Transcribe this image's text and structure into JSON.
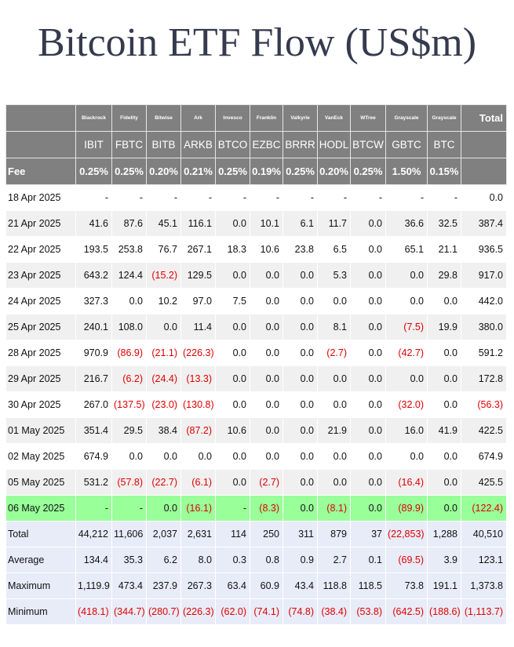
{
  "title": "Bitcoin ETF Flow (US$m)",
  "table": {
    "header": {
      "issuers": [
        "Blackrock",
        "Fidelity",
        "Bitwise",
        "Ark",
        "Invesco",
        "Franklin",
        "Valkyrie",
        "VanEck",
        "WTree",
        "Grayscale",
        "Grayscale"
      ],
      "total_label": "Total",
      "tickers": [
        "IBIT",
        "FBTC",
        "BITB",
        "ARKB",
        "BTCO",
        "EZBC",
        "BRRR",
        "HODL",
        "BTCW",
        "GBTC",
        "BTC"
      ],
      "fee_label": "Fee",
      "fees": [
        "0.25%",
        "0.25%",
        "0.20%",
        "0.21%",
        "0.25%",
        "0.19%",
        "0.25%",
        "0.20%",
        "0.25%",
        "1.50%",
        "0.15%"
      ]
    },
    "rows": [
      {
        "label": "18 Apr 2025",
        "cells": [
          "-",
          "-",
          "-",
          "-",
          "-",
          "-",
          "-",
          "-",
          "-",
          "-",
          "-",
          "0.0"
        ]
      },
      {
        "label": "21 Apr 2025",
        "cells": [
          "41.6",
          "87.6",
          "45.1",
          "116.1",
          "0.0",
          "10.1",
          "6.1",
          "11.7",
          "0.0",
          "36.6",
          "32.5",
          "387.4"
        ]
      },
      {
        "label": "22 Apr 2025",
        "cells": [
          "193.5",
          "253.8",
          "76.7",
          "267.1",
          "18.3",
          "10.6",
          "23.8",
          "6.5",
          "0.0",
          "65.1",
          "21.1",
          "936.5"
        ]
      },
      {
        "label": "23 Apr 2025",
        "cells": [
          "643.2",
          "124.4",
          "(15.2)",
          "129.5",
          "0.0",
          "0.0",
          "0.0",
          "5.3",
          "0.0",
          "0.0",
          "29.8",
          "917.0"
        ]
      },
      {
        "label": "24 Apr 2025",
        "cells": [
          "327.3",
          "0.0",
          "10.2",
          "97.0",
          "7.5",
          "0.0",
          "0.0",
          "0.0",
          "0.0",
          "0.0",
          "0.0",
          "442.0"
        ]
      },
      {
        "label": "25 Apr 2025",
        "cells": [
          "240.1",
          "108.0",
          "0.0",
          "11.4",
          "0.0",
          "0.0",
          "0.0",
          "8.1",
          "0.0",
          "(7.5)",
          "19.9",
          "380.0"
        ]
      },
      {
        "label": "28 Apr 2025",
        "cells": [
          "970.9",
          "(86.9)",
          "(21.1)",
          "(226.3)",
          "0.0",
          "0.0",
          "0.0",
          "(2.7)",
          "0.0",
          "(42.7)",
          "0.0",
          "591.2"
        ]
      },
      {
        "label": "29 Apr 2025",
        "cells": [
          "216.7",
          "(6.2)",
          "(24.4)",
          "(13.3)",
          "0.0",
          "0.0",
          "0.0",
          "0.0",
          "0.0",
          "0.0",
          "0.0",
          "172.8"
        ]
      },
      {
        "label": "30 Apr 2025",
        "cells": [
          "267.0",
          "(137.5)",
          "(23.0)",
          "(130.8)",
          "0.0",
          "0.0",
          "0.0",
          "0.0",
          "0.0",
          "(32.0)",
          "0.0",
          "(56.3)"
        ]
      },
      {
        "label": "01 May 2025",
        "cells": [
          "351.4",
          "29.5",
          "38.4",
          "(87.2)",
          "10.6",
          "0.0",
          "0.0",
          "21.9",
          "0.0",
          "16.0",
          "41.9",
          "422.5"
        ]
      },
      {
        "label": "02 May 2025",
        "cells": [
          "674.9",
          "0.0",
          "0.0",
          "0.0",
          "0.0",
          "0.0",
          "0.0",
          "0.0",
          "0.0",
          "0.0",
          "0.0",
          "674.9"
        ]
      },
      {
        "label": "05 May 2025",
        "cells": [
          "531.2",
          "(57.8)",
          "(22.7)",
          "(6.1)",
          "0.0",
          "(2.7)",
          "0.0",
          "0.0",
          "0.0",
          "(16.4)",
          "0.0",
          "425.5"
        ]
      },
      {
        "label": "06 May 2025",
        "cells": [
          "-",
          "-",
          "0.0",
          "(16.1)",
          "-",
          "(8.3)",
          "0.0",
          "(8.1)",
          "0.0",
          "(89.9)",
          "0.0",
          "(122.4)"
        ]
      }
    ],
    "summary": [
      {
        "label": "Total",
        "cells": [
          "44,212",
          "11,606",
          "2,037",
          "2,631",
          "114",
          "250",
          "311",
          "879",
          "37",
          "(22,853)",
          "1,288",
          "40,510"
        ]
      },
      {
        "label": "Average",
        "cells": [
          "134.4",
          "35.3",
          "6.2",
          "8.0",
          "0.3",
          "0.8",
          "0.9",
          "2.7",
          "0.1",
          "(69.5)",
          "3.9",
          "123.1"
        ]
      },
      {
        "label": "Maximum",
        "cells": [
          "1,119.9",
          "473.4",
          "237.9",
          "267.3",
          "63.4",
          "60.9",
          "43.4",
          "118.8",
          "118.5",
          "73.8",
          "191.1",
          "1,373.8"
        ]
      },
      {
        "label": "Minimum",
        "cells": [
          "(418.1)",
          "(344.7)",
          "(280.7)",
          "(226.3)",
          "(62.0)",
          "(74.1)",
          "(74.8)",
          "(38.4)",
          "(53.8)",
          "(642.5)",
          "(188.6)",
          "(1,113.7)"
        ]
      }
    ]
  }
}
